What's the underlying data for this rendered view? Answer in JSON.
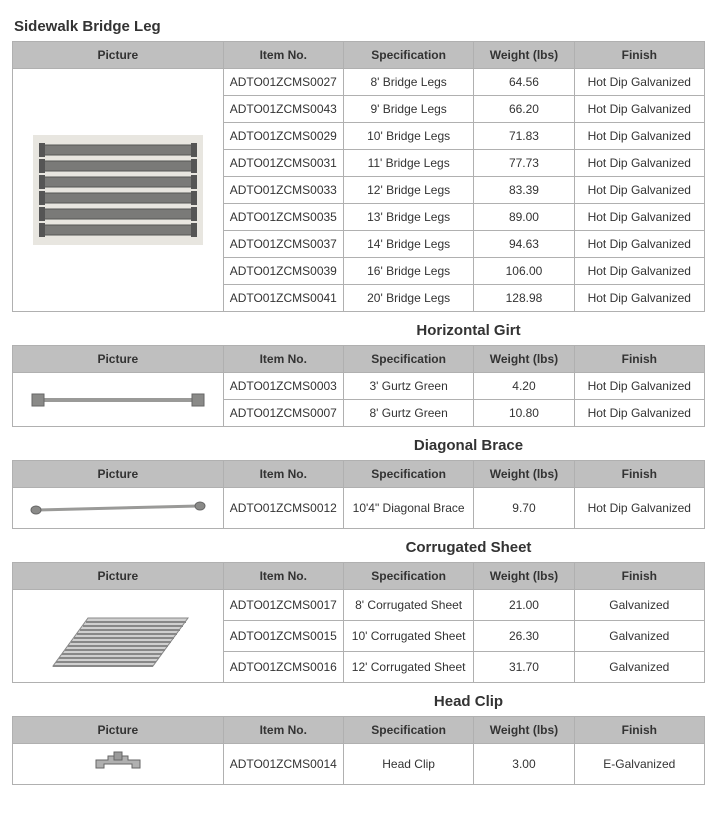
{
  "columns": [
    "Picture",
    "Item No.",
    "Specification",
    "Weight (lbs)",
    "Finish"
  ],
  "sections": [
    {
      "title": "Sidewalk Bridge Leg",
      "titleCentered": false,
      "imageKind": "bridgeleg",
      "imageRowspan": 9,
      "rows": [
        {
          "item": "ADTO01ZCMS0027",
          "spec": "8' Bridge Legs",
          "wt": "64.56",
          "fin": "Hot Dip Galvanized"
        },
        {
          "item": "ADTO01ZCMS0043",
          "spec": "9' Bridge Legs",
          "wt": "66.20",
          "fin": "Hot Dip Galvanized"
        },
        {
          "item": "ADTO01ZCMS0029",
          "spec": "10' Bridge Legs",
          "wt": "71.83",
          "fin": "Hot Dip Galvanized"
        },
        {
          "item": "ADTO01ZCMS0031",
          "spec": "11' Bridge Legs",
          "wt": "77.73",
          "fin": "Hot Dip Galvanized"
        },
        {
          "item": "ADTO01ZCMS0033",
          "spec": "12' Bridge Legs",
          "wt": "83.39",
          "fin": "Hot Dip Galvanized"
        },
        {
          "item": "ADTO01ZCMS0035",
          "spec": "13' Bridge Legs",
          "wt": "89.00",
          "fin": "Hot Dip Galvanized"
        },
        {
          "item": "ADTO01ZCMS0037",
          "spec": "14' Bridge Legs",
          "wt": "94.63",
          "fin": "Hot Dip Galvanized"
        },
        {
          "item": "ADTO01ZCMS0039",
          "spec": "16' Bridge Legs",
          "wt": "106.00",
          "fin": "Hot Dip Galvanized"
        },
        {
          "item": "ADTO01ZCMS0041",
          "spec": "20' Bridge Legs",
          "wt": "128.98",
          "fin": "Hot Dip Galvanized"
        }
      ]
    },
    {
      "title": "Horizontal Girt",
      "titleCentered": true,
      "imageKind": "girt",
      "imageRowspan": 2,
      "rows": [
        {
          "item": "ADTO01ZCMS0003",
          "spec": "3' Gurtz Green",
          "wt": "4.20",
          "fin": "Hot Dip Galvanized"
        },
        {
          "item": "ADTO01ZCMS0007",
          "spec": "8' Gurtz Green",
          "wt": "10.80",
          "fin": "Hot Dip Galvanized"
        }
      ]
    },
    {
      "title": "Diagonal Brace",
      "titleCentered": true,
      "imageKind": "brace",
      "imageRowspan": 1,
      "rows": [
        {
          "item": "ADTO01ZCMS0012",
          "spec": "10'4\" Diagonal Brace",
          "wt": "9.70",
          "fin": "Hot Dip Galvanized"
        }
      ]
    },
    {
      "title": "Corrugated Sheet",
      "titleCentered": true,
      "imageKind": "sheet",
      "imageRowspan": 3,
      "rows": [
        {
          "item": "ADTO01ZCMS0017",
          "spec": "8' Corrugated Sheet",
          "wt": "21.00",
          "fin": "Galvanized"
        },
        {
          "item": "ADTO01ZCMS0015",
          "spec": "10' Corrugated Sheet",
          "wt": "26.30",
          "fin": "Galvanized"
        },
        {
          "item": "ADTO01ZCMS0016",
          "spec": "12' Corrugated Sheet",
          "wt": "31.70",
          "fin": "Galvanized"
        }
      ]
    },
    {
      "title": "Head Clip",
      "titleCentered": true,
      "imageKind": "clip",
      "imageRowspan": 1,
      "rows": [
        {
          "item": "ADTO01ZCMS0014",
          "spec": "Head Clip",
          "wt": "3.00",
          "fin": "E-Galvanized"
        }
      ]
    }
  ]
}
